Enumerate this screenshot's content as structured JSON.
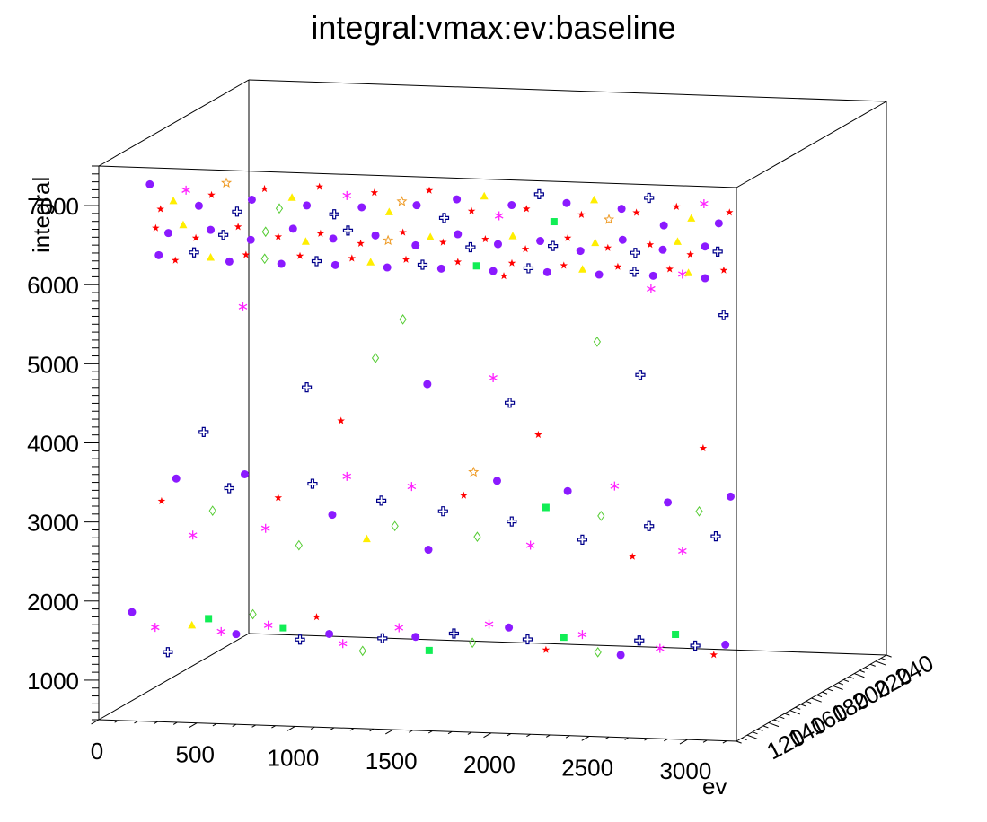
{
  "title": "integral:vmax:ev:baseline",
  "chart_data": {
    "type": "scatter",
    "title": "integral:vmax:ev:baseline",
    "xlabel": "ev",
    "ylabel": "",
    "zlabel": "integral",
    "xlim": [
      0,
      3250
    ],
    "ylim": [
      110,
      250
    ],
    "zlim": [
      500,
      7500
    ],
    "grid": false,
    "legend": "none",
    "x_ticks": [
      "0",
      "500",
      "1000",
      "1500",
      "2000",
      "2500",
      "3000"
    ],
    "y_ticks": [
      "120",
      "140",
      "160",
      "180",
      "200",
      "220",
      "240"
    ],
    "z_ticks": [
      "1000",
      "2000",
      "3000",
      "4000",
      "5000",
      "6000",
      "7000"
    ],
    "x_tick_values": [
      0,
      500,
      1000,
      1500,
      2000,
      2500,
      3000
    ],
    "y_tick_values": [
      120,
      140,
      160,
      180,
      200,
      220,
      240
    ],
    "z_tick_values": [
      1000,
      2000,
      3000,
      4000,
      5000,
      6000,
      7000
    ],
    "color_scale": "baseline",
    "marker_styles": [
      {
        "marker": "circle",
        "color": "#8b1aff"
      },
      {
        "marker": "star",
        "color": "#ff0000"
      },
      {
        "marker": "asterisk",
        "color": "#ff22ff"
      },
      {
        "marker": "cross",
        "color": "#00008b"
      },
      {
        "marker": "diamond",
        "color": "#55cc33"
      },
      {
        "marker": "triangle",
        "color": "#ffee00"
      },
      {
        "marker": "square",
        "color": "#11ee55"
      },
      {
        "marker": "open-star",
        "color": "#ee9922"
      }
    ],
    "points": [
      [
        120,
        119,
        1800,
        0
      ],
      [
        260,
        115,
        1650,
        2
      ],
      [
        330,
        114,
        1350,
        3
      ],
      [
        420,
        120,
        1650,
        5
      ],
      [
        510,
        119,
        1750,
        6
      ],
      [
        580,
        118,
        1600,
        2
      ],
      [
        640,
        121,
        1550,
        0
      ],
      [
        720,
        122,
        1800,
        4
      ],
      [
        820,
        118,
        1700,
        2
      ],
      [
        880,
        121,
        1650,
        6
      ],
      [
        960,
        122,
        1500,
        3
      ],
      [
        1050,
        121,
        1800,
        1
      ],
      [
        1120,
        120,
        1600,
        0
      ],
      [
        1200,
        118,
        1500,
        2
      ],
      [
        1290,
        120,
        1400,
        4
      ],
      [
        1380,
        122,
        1550,
        3
      ],
      [
        1470,
        121,
        1700,
        2
      ],
      [
        1560,
        120,
        1600,
        0
      ],
      [
        1640,
        118,
        1450,
        6
      ],
      [
        1750,
        121,
        1650,
        3
      ],
      [
        1850,
        120,
        1550,
        4
      ],
      [
        1940,
        119,
        1800,
        2
      ],
      [
        2030,
        121,
        1750,
        0
      ],
      [
        2120,
        122,
        1600,
        3
      ],
      [
        2230,
        119,
        1500,
        1
      ],
      [
        2310,
        121,
        1650,
        6
      ],
      [
        2410,
        120,
        1700,
        2
      ],
      [
        2500,
        118,
        1500,
        4
      ],
      [
        2600,
        121,
        1450,
        0
      ],
      [
        2700,
        120,
        1650,
        3
      ],
      [
        2800,
        121,
        1550,
        2
      ],
      [
        2890,
        119,
        1750,
        6
      ],
      [
        2980,
        121,
        1600,
        3
      ],
      [
        3080,
        120,
        1500,
        1
      ],
      [
        3150,
        118,
        1650,
        0
      ],
      [
        260,
        121,
        3200,
        1
      ],
      [
        340,
        120,
        3500,
        0
      ],
      [
        430,
        119,
        2800,
        2
      ],
      [
        520,
        121,
        3100,
        4
      ],
      [
        610,
        120,
        3400,
        3
      ],
      [
        700,
        118,
        3600,
        0
      ],
      [
        790,
        121,
        2900,
        2
      ],
      [
        860,
        120,
        3300,
        1
      ],
      [
        960,
        121,
        2700,
        4
      ],
      [
        1040,
        119,
        3500,
        3
      ],
      [
        1130,
        121,
        3100,
        0
      ],
      [
        1210,
        120,
        3600,
        2
      ],
      [
        1300,
        122,
        2800,
        5
      ],
      [
        1380,
        121,
        3300,
        3
      ],
      [
        1460,
        119,
        3000,
        4
      ],
      [
        1540,
        120,
        3500,
        2
      ],
      [
        1620,
        121,
        2700,
        0
      ],
      [
        1700,
        120,
        3200,
        3
      ],
      [
        1800,
        121,
        3400,
        1
      ],
      [
        1880,
        119,
        2900,
        4
      ],
      [
        1970,
        121,
        3600,
        0
      ],
      [
        2050,
        120,
        3100,
        3
      ],
      [
        2140,
        121,
        2800,
        2
      ],
      [
        2230,
        119,
        3300,
        6
      ],
      [
        2330,
        121,
        3500,
        0
      ],
      [
        2410,
        120,
        2900,
        3
      ],
      [
        2500,
        121,
        3200,
        4
      ],
      [
        2580,
        119,
        3600,
        2
      ],
      [
        2660,
        121,
        2700,
        1
      ],
      [
        2750,
        120,
        3100,
        3
      ],
      [
        2840,
        121,
        3400,
        0
      ],
      [
        2920,
        120,
        2800,
        2
      ],
      [
        3000,
        121,
        3300,
        4
      ],
      [
        3090,
        120,
        3000,
        3
      ],
      [
        3160,
        121,
        3500,
        0
      ],
      [
        480,
        120,
        4100,
        3
      ],
      [
        1000,
        121,
        4700,
        3
      ],
      [
        1180,
        120,
        4300,
        1
      ],
      [
        1490,
        121,
        5600,
        4
      ],
      [
        1620,
        120,
        4800,
        0
      ],
      [
        1850,
        121,
        3700,
        7
      ],
      [
        1950,
        121,
        4900,
        2
      ],
      [
        2040,
        120,
        4600,
        3
      ],
      [
        2180,
        121,
        4200,
        1
      ],
      [
        2700,
        121,
        5000,
        3
      ],
      [
        2760,
        120,
        6100,
        2
      ],
      [
        3020,
        121,
        4100,
        1
      ],
      [
        680,
        120,
        5700,
        2
      ],
      [
        1350,
        121,
        5100,
        4
      ],
      [
        2480,
        121,
        5400,
        4
      ],
      [
        2920,
        120,
        6300,
        2
      ],
      [
        3130,
        120,
        5800,
        3
      ],
      [
        2010,
        120,
        6200,
        1
      ],
      [
        200,
        121,
        7200,
        0
      ],
      [
        260,
        120,
        6900,
        1
      ],
      [
        320,
        121,
        7000,
        5
      ],
      [
        390,
        120,
        7150,
        2
      ],
      [
        450,
        121,
        6950,
        0
      ],
      [
        520,
        120,
        7100,
        1
      ],
      [
        590,
        121,
        7250,
        7
      ],
      [
        650,
        120,
        6900,
        3
      ],
      [
        720,
        121,
        7050,
        0
      ],
      [
        790,
        120,
        7200,
        1
      ],
      [
        860,
        121,
        6950,
        4
      ],
      [
        930,
        120,
        7100,
        5
      ],
      [
        1000,
        121,
        7000,
        0
      ],
      [
        1070,
        120,
        7250,
        1
      ],
      [
        1140,
        121,
        6900,
        3
      ],
      [
        1210,
        120,
        7150,
        2
      ],
      [
        1280,
        121,
        7000,
        0
      ],
      [
        1350,
        120,
        7200,
        1
      ],
      [
        1420,
        121,
        6950,
        5
      ],
      [
        1490,
        120,
        7100,
        7
      ],
      [
        1560,
        121,
        7050,
        0
      ],
      [
        1630,
        120,
        7250,
        1
      ],
      [
        1700,
        121,
        6900,
        3
      ],
      [
        1770,
        120,
        7150,
        0
      ],
      [
        1840,
        121,
        7000,
        1
      ],
      [
        1910,
        120,
        7200,
        5
      ],
      [
        1980,
        121,
        6950,
        2
      ],
      [
        2050,
        120,
        7100,
        0
      ],
      [
        2120,
        121,
        7050,
        1
      ],
      [
        2190,
        120,
        7250,
        3
      ],
      [
        2260,
        121,
        6900,
        6
      ],
      [
        2330,
        120,
        7150,
        0
      ],
      [
        2400,
        121,
        7000,
        1
      ],
      [
        2470,
        120,
        7200,
        5
      ],
      [
        2540,
        121,
        6950,
        7
      ],
      [
        2610,
        120,
        7100,
        0
      ],
      [
        2680,
        121,
        7050,
        1
      ],
      [
        2750,
        120,
        7250,
        3
      ],
      [
        2820,
        121,
        6900,
        0
      ],
      [
        2890,
        120,
        7150,
        1
      ],
      [
        2960,
        121,
        7000,
        5
      ],
      [
        3030,
        120,
        7200,
        2
      ],
      [
        3100,
        121,
        6950,
        0
      ],
      [
        3160,
        120,
        7100,
        1
      ],
      [
        230,
        121,
        6650,
        1
      ],
      [
        300,
        120,
        6600,
        0
      ],
      [
        370,
        121,
        6700,
        5
      ],
      [
        440,
        120,
        6550,
        1
      ],
      [
        510,
        121,
        6650,
        0
      ],
      [
        580,
        120,
        6600,
        3
      ],
      [
        650,
        121,
        6700,
        1
      ],
      [
        720,
        120,
        6550,
        0
      ],
      [
        790,
        121,
        6650,
        4
      ],
      [
        860,
        120,
        6600,
        1
      ],
      [
        930,
        121,
        6700,
        0
      ],
      [
        1000,
        120,
        6550,
        5
      ],
      [
        1070,
        121,
        6650,
        1
      ],
      [
        1140,
        120,
        6600,
        0
      ],
      [
        1210,
        121,
        6700,
        3
      ],
      [
        1280,
        120,
        6550,
        1
      ],
      [
        1350,
        121,
        6650,
        0
      ],
      [
        1420,
        120,
        6600,
        7
      ],
      [
        1490,
        121,
        6700,
        1
      ],
      [
        1560,
        120,
        6550,
        0
      ],
      [
        1630,
        121,
        6650,
        5
      ],
      [
        1700,
        120,
        6600,
        1
      ],
      [
        1770,
        121,
        6700,
        0
      ],
      [
        1840,
        120,
        6550,
        3
      ],
      [
        1910,
        121,
        6650,
        1
      ],
      [
        1980,
        120,
        6600,
        0
      ],
      [
        2050,
        121,
        6700,
        5
      ],
      [
        2120,
        120,
        6550,
        1
      ],
      [
        2190,
        121,
        6650,
        0
      ],
      [
        2260,
        120,
        6600,
        3
      ],
      [
        2330,
        121,
        6700,
        1
      ],
      [
        2400,
        120,
        6550,
        0
      ],
      [
        2470,
        121,
        6650,
        5
      ],
      [
        2540,
        120,
        6600,
        1
      ],
      [
        2610,
        121,
        6700,
        0
      ],
      [
        2680,
        120,
        6550,
        3
      ],
      [
        2750,
        121,
        6650,
        1
      ],
      [
        2820,
        120,
        6600,
        0
      ],
      [
        2890,
        121,
        6700,
        5
      ],
      [
        2960,
        120,
        6550,
        1
      ],
      [
        3030,
        121,
        6650,
        0
      ],
      [
        3100,
        120,
        6600,
        3
      ],
      [
        240,
        122,
        6300,
        0
      ],
      [
        330,
        121,
        6250,
        1
      ],
      [
        420,
        122,
        6350,
        3
      ],
      [
        510,
        121,
        6300,
        5
      ],
      [
        600,
        122,
        6250,
        0
      ],
      [
        690,
        121,
        6350,
        1
      ],
      [
        780,
        122,
        6300,
        4
      ],
      [
        870,
        121,
        6250,
        0
      ],
      [
        960,
        122,
        6350,
        1
      ],
      [
        1050,
        121,
        6300,
        3
      ],
      [
        1140,
        122,
        6250,
        0
      ],
      [
        1230,
        121,
        6350,
        1
      ],
      [
        1320,
        122,
        6300,
        5
      ],
      [
        1410,
        121,
        6250,
        0
      ],
      [
        1500,
        122,
        6350,
        1
      ],
      [
        1590,
        121,
        6300,
        3
      ],
      [
        1680,
        122,
        6250,
        0
      ],
      [
        1770,
        121,
        6350,
        1
      ],
      [
        1860,
        122,
        6300,
        6
      ],
      [
        1950,
        121,
        6250,
        0
      ],
      [
        2040,
        122,
        6350,
        1
      ],
      [
        2130,
        121,
        6300,
        3
      ],
      [
        2220,
        122,
        6250,
        0
      ],
      [
        2310,
        121,
        6350,
        1
      ],
      [
        2400,
        122,
        6300,
        5
      ],
      [
        2490,
        121,
        6250,
        0
      ],
      [
        2580,
        122,
        6350,
        1
      ],
      [
        2670,
        121,
        6300,
        3
      ],
      [
        2760,
        122,
        6250,
        0
      ],
      [
        2850,
        121,
        6350,
        1
      ],
      [
        2940,
        122,
        6300,
        5
      ],
      [
        3030,
        121,
        6250,
        0
      ],
      [
        3120,
        122,
        6350,
        1
      ]
    ]
  }
}
